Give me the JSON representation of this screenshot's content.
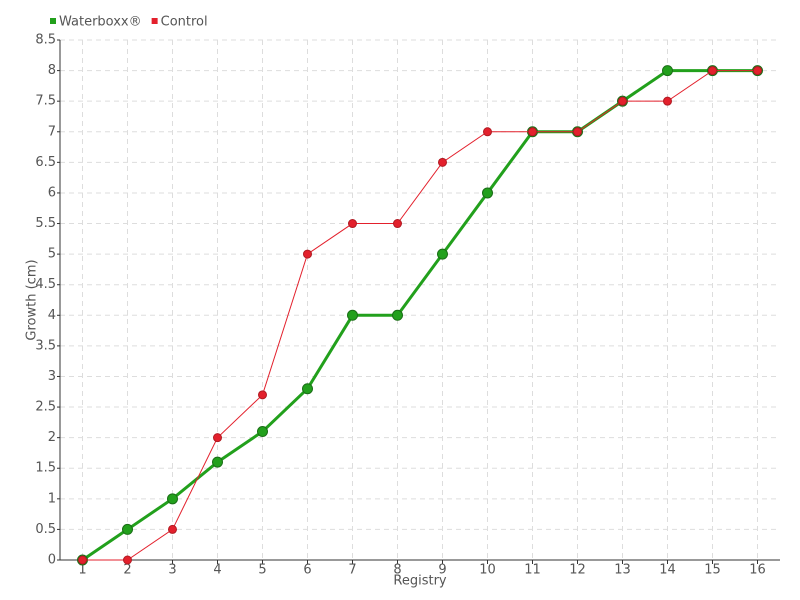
{
  "chart_data": {
    "type": "line",
    "x_label": "Registry",
    "y_label": "Growth (cm)",
    "categories": [
      "1",
      "2",
      "3",
      "4",
      "5",
      "6",
      "7",
      "8",
      "9",
      "10",
      "11",
      "12",
      "13",
      "14",
      "15",
      "16"
    ],
    "series": [
      {
        "name": "Waterboxx®",
        "color": "#22a01c",
        "values": [
          0,
          0.5,
          1,
          1.6,
          2.1,
          2.8,
          4,
          4,
          5,
          6,
          7,
          7,
          7.5,
          8,
          8,
          8
        ]
      },
      {
        "name": "Control",
        "color": "#e3202c",
        "values": [
          0,
          0,
          0.5,
          2,
          2.7,
          5,
          5.5,
          5.5,
          6.5,
          7,
          7,
          7,
          7.5,
          7.5,
          8,
          8
        ]
      }
    ],
    "ylim": [
      0,
      8.5
    ],
    "yticks": [
      0,
      0.5,
      1,
      1.5,
      2,
      2.5,
      3,
      3.5,
      4,
      4.5,
      5,
      5.5,
      6,
      6.5,
      7,
      7.5,
      8,
      8.5
    ],
    "grid": true,
    "legend": "top-left"
  }
}
